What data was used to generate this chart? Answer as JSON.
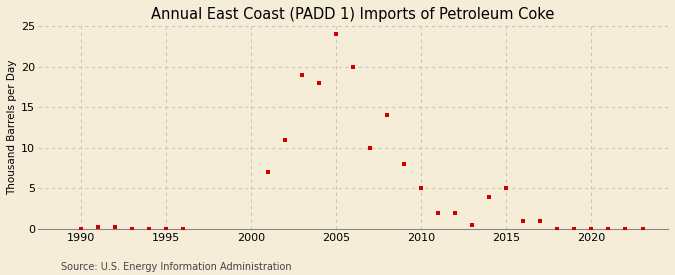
{
  "title": "Annual East Coast (PADD 1) Imports of Petroleum Coke",
  "ylabel": "Thousand Barrels per Day",
  "source": "Source: U.S. Energy Information Administration",
  "background_color": "#f5edd8",
  "plot_bg_color": "#f5edd8",
  "marker_color": "#cc0000",
  "grid_color": "#bbbbbb",
  "xlim": [
    1987.5,
    2024.5
  ],
  "ylim": [
    0,
    25
  ],
  "yticks": [
    0,
    5,
    10,
    15,
    20,
    25
  ],
  "xticks": [
    1990,
    1995,
    2000,
    2005,
    2010,
    2015,
    2020
  ],
  "years": [
    1990,
    1991,
    1992,
    1993,
    1994,
    1995,
    1996,
    2001,
    2002,
    2003,
    2004,
    2005,
    2006,
    2007,
    2008,
    2009,
    2010,
    2011,
    2012,
    2013,
    2014,
    2015,
    2016,
    2017,
    2018,
    2019,
    2020,
    2021,
    2022,
    2023
  ],
  "values": [
    0.0,
    0.3,
    0.3,
    0.0,
    0.0,
    0.0,
    0.0,
    7.0,
    11.0,
    19.0,
    18.0,
    24.0,
    20.0,
    10.0,
    14.0,
    8.0,
    5.0,
    2.0,
    2.0,
    0.5,
    4.0,
    5.0,
    1.0,
    1.0,
    0.0,
    0.0,
    0.0,
    0.0,
    0.0,
    0.0
  ],
  "title_fontsize": 10.5,
  "tick_labelsize": 8,
  "ylabel_fontsize": 7.5,
  "source_fontsize": 7
}
